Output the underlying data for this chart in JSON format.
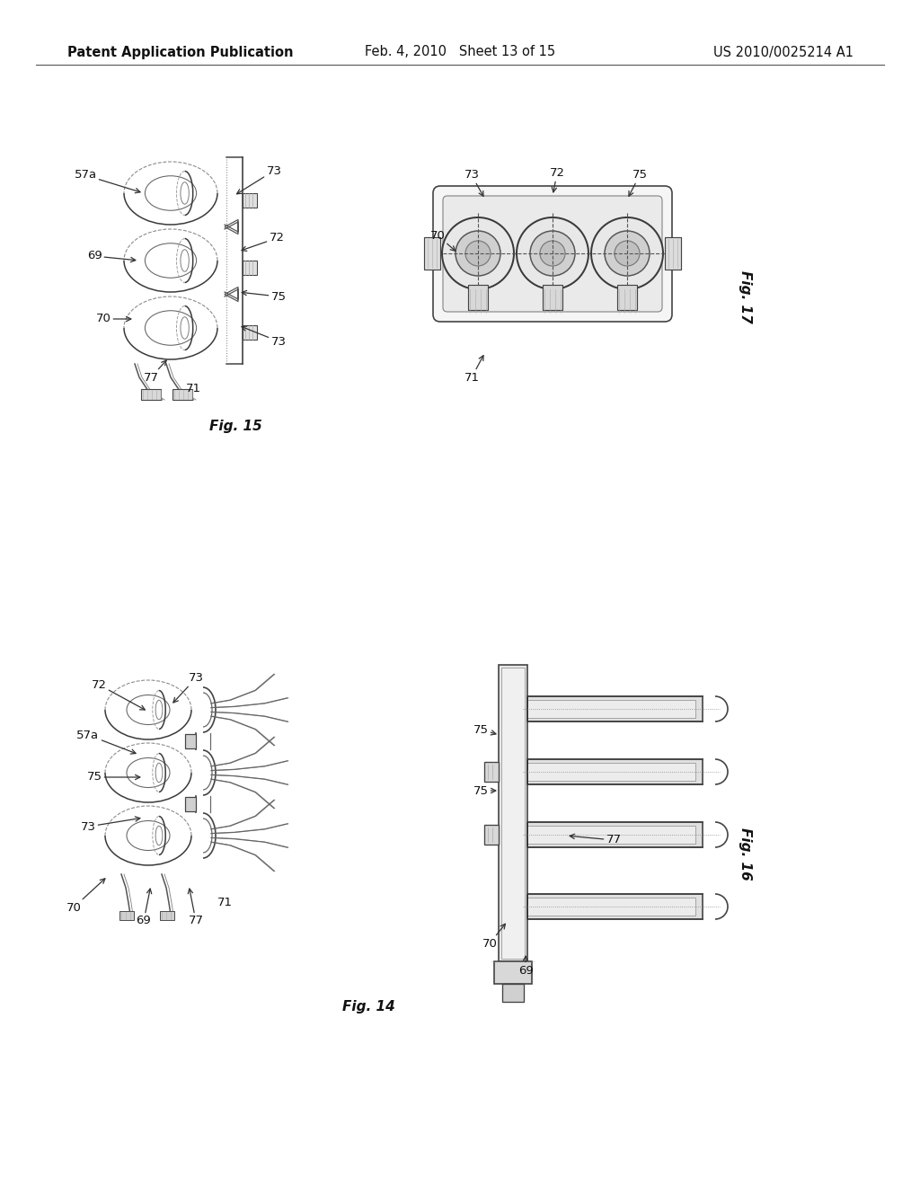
{
  "bg_color": "#ffffff",
  "header_left": "Patent Application Publication",
  "header_center": "Feb. 4, 2010   Sheet 13 of 15",
  "header_right": "US 2010/0025214 A1",
  "line_color": "#555555",
  "text_color": "#111111",
  "draw_color": "#444444",
  "header_fontsize": 10.5,
  "label_fontsize": 9.5,
  "figlabel_fontsize": 11
}
